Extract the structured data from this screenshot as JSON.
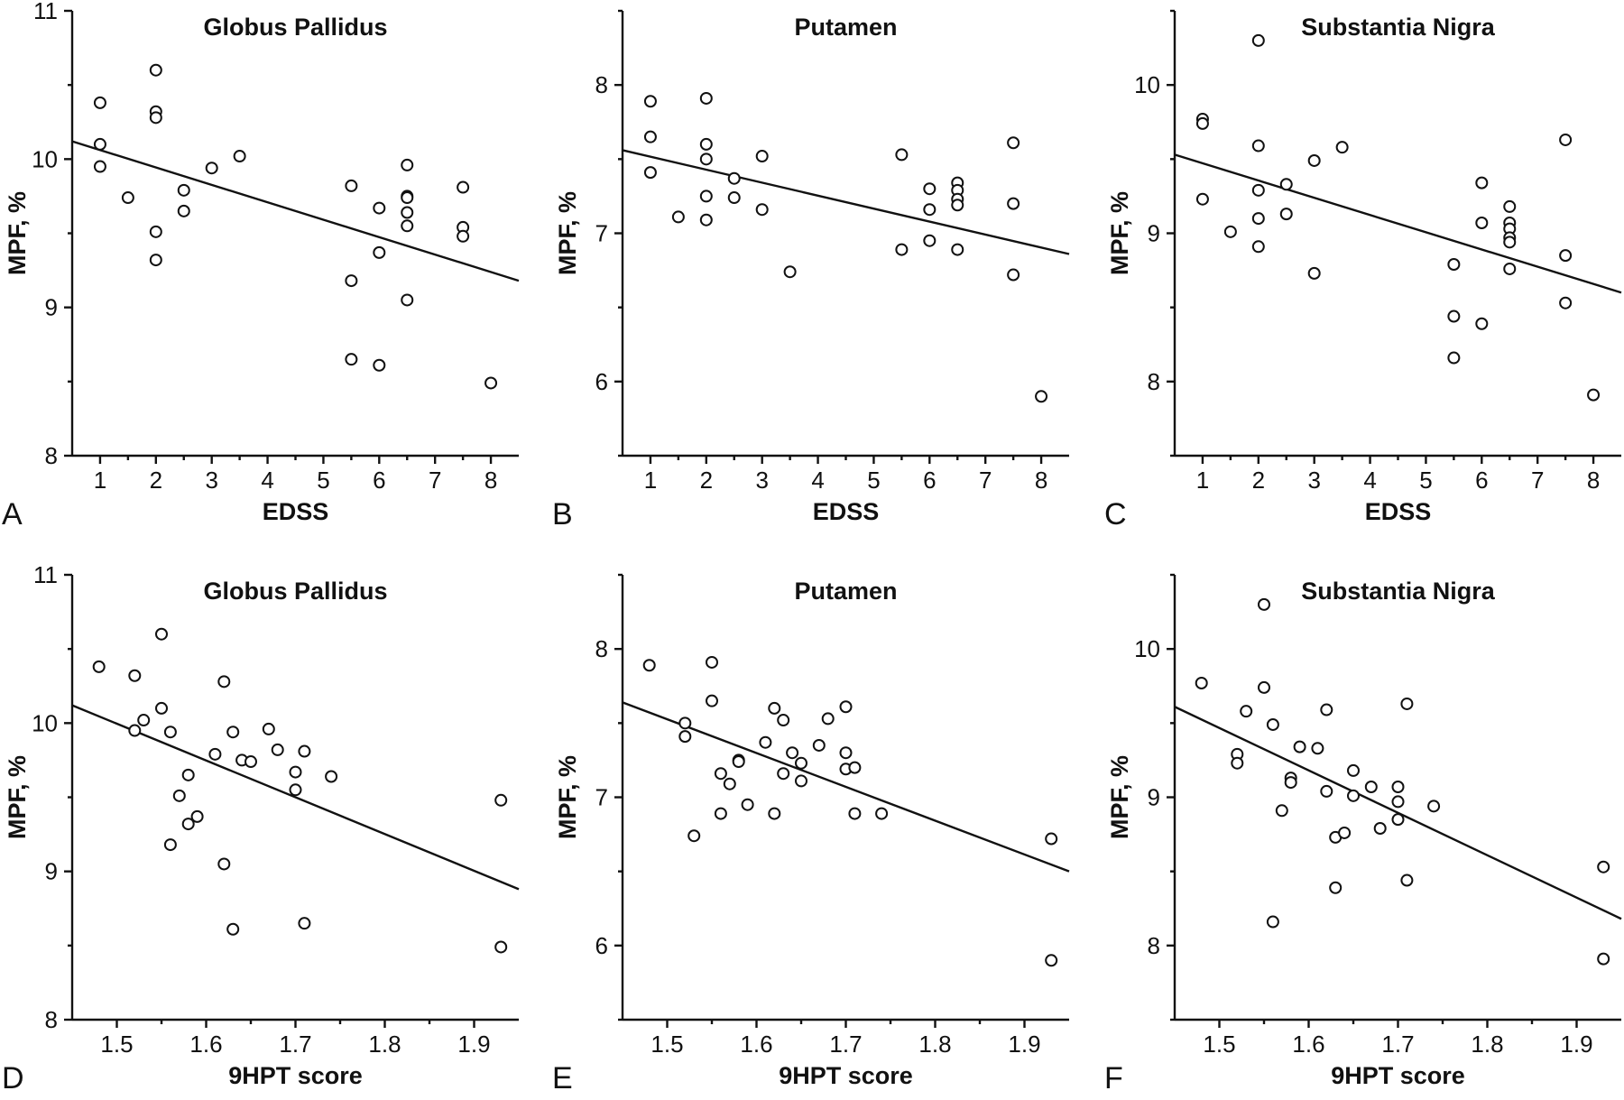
{
  "chart_data": [
    {
      "id": "A",
      "type": "scatter",
      "panel_label": "A",
      "title": "Globus Pallidus",
      "xlabel": "EDSS",
      "ylabel": "MPF, %",
      "xlim": [
        0.5,
        8.5
      ],
      "ylim": [
        8,
        11
      ],
      "xticks": [
        1,
        2,
        3,
        4,
        5,
        6,
        7,
        8
      ],
      "yticks": [
        8,
        9,
        10,
        11
      ],
      "points": [
        [
          1,
          10.38
        ],
        [
          1,
          10.1
        ],
        [
          1,
          9.95
        ],
        [
          1.5,
          9.74
        ],
        [
          2,
          10.6
        ],
        [
          2,
          10.32
        ],
        [
          2,
          10.28
        ],
        [
          2,
          9.51
        ],
        [
          2,
          9.32
        ],
        [
          2.5,
          9.79
        ],
        [
          2.5,
          9.65
        ],
        [
          3,
          9.94
        ],
        [
          3.5,
          10.02
        ],
        [
          5.5,
          9.82
        ],
        [
          5.5,
          9.18
        ],
        [
          5.5,
          8.65
        ],
        [
          6,
          9.67
        ],
        [
          6,
          9.37
        ],
        [
          6,
          8.61
        ],
        [
          6.5,
          9.96
        ],
        [
          6.5,
          9.75
        ],
        [
          6.5,
          9.74
        ],
        [
          6.5,
          9.64
        ],
        [
          6.5,
          9.55
        ],
        [
          6.5,
          9.05
        ],
        [
          7.5,
          9.81
        ],
        [
          7.5,
          9.54
        ],
        [
          7.5,
          9.48
        ],
        [
          8,
          8.49
        ]
      ],
      "fit_line": [
        [
          0.5,
          10.12
        ],
        [
          8.5,
          9.18
        ]
      ]
    },
    {
      "id": "B",
      "type": "scatter",
      "panel_label": "B",
      "title": "Putamen",
      "xlabel": "EDSS",
      "ylabel": "MPF, %",
      "xlim": [
        0.5,
        8.5
      ],
      "ylim": [
        5.5,
        8.5
      ],
      "xticks": [
        1,
        2,
        3,
        4,
        5,
        6,
        7,
        8
      ],
      "yticks": [
        6,
        7,
        8
      ],
      "points": [
        [
          1,
          7.89
        ],
        [
          1,
          7.65
        ],
        [
          1,
          7.41
        ],
        [
          1.5,
          7.11
        ],
        [
          2,
          7.91
        ],
        [
          2,
          7.6
        ],
        [
          2,
          7.5
        ],
        [
          2,
          7.25
        ],
        [
          2,
          7.09
        ],
        [
          2.5,
          7.37
        ],
        [
          2.5,
          7.24
        ],
        [
          3,
          7.52
        ],
        [
          3,
          7.16
        ],
        [
          3.5,
          6.74
        ],
        [
          5.5,
          7.53
        ],
        [
          5.5,
          6.89
        ],
        [
          6,
          7.3
        ],
        [
          6,
          7.16
        ],
        [
          6,
          6.95
        ],
        [
          6.5,
          7.34
        ],
        [
          6.5,
          7.29
        ],
        [
          6.5,
          7.23
        ],
        [
          6.5,
          7.19
        ],
        [
          6.5,
          6.89
        ],
        [
          7.5,
          7.61
        ],
        [
          7.5,
          7.2
        ],
        [
          7.5,
          6.72
        ],
        [
          8,
          5.9
        ]
      ],
      "fit_line": [
        [
          0.5,
          7.56
        ],
        [
          8.5,
          6.86
        ]
      ]
    },
    {
      "id": "C",
      "type": "scatter",
      "panel_label": "C",
      "title": "Substantia Nigra",
      "xlabel": "EDSS",
      "ylabel": "MPF, %",
      "xlim": [
        0.5,
        8.5
      ],
      "ylim": [
        7.5,
        10.5
      ],
      "xticks": [
        1,
        2,
        3,
        4,
        5,
        6,
        7,
        8
      ],
      "yticks": [
        8,
        9,
        10
      ],
      "points": [
        [
          1,
          9.77
        ],
        [
          1,
          9.74
        ],
        [
          1,
          9.23
        ],
        [
          1.5,
          9.01
        ],
        [
          2,
          10.3
        ],
        [
          2,
          9.59
        ],
        [
          2,
          9.29
        ],
        [
          2,
          9.1
        ],
        [
          2,
          8.91
        ],
        [
          2.5,
          9.33
        ],
        [
          2.5,
          9.13
        ],
        [
          3,
          9.49
        ],
        [
          3,
          8.73
        ],
        [
          3.5,
          9.58
        ],
        [
          5.5,
          8.79
        ],
        [
          5.5,
          8.44
        ],
        [
          5.5,
          8.16
        ],
        [
          6,
          9.34
        ],
        [
          6,
          9.07
        ],
        [
          6,
          8.39
        ],
        [
          6.5,
          9.18
        ],
        [
          6.5,
          9.07
        ],
        [
          6.5,
          9.03
        ],
        [
          6.5,
          8.97
        ],
        [
          6.5,
          8.94
        ],
        [
          6.5,
          8.76
        ],
        [
          7.5,
          9.63
        ],
        [
          7.5,
          8.85
        ],
        [
          7.5,
          8.53
        ],
        [
          8,
          7.91
        ]
      ],
      "fit_line": [
        [
          0.5,
          9.53
        ],
        [
          8.5,
          8.6
        ]
      ]
    },
    {
      "id": "D",
      "type": "scatter",
      "panel_label": "D",
      "title": "Globus Pallidus",
      "xlabel": "9HPT score",
      "ylabel": "MPF, %",
      "xlim": [
        1.45,
        1.95
      ],
      "ylim": [
        8,
        11
      ],
      "xticks": [
        1.5,
        1.6,
        1.7,
        1.8,
        1.9
      ],
      "yticks": [
        8,
        9,
        10,
        11
      ],
      "points": [
        [
          1.48,
          10.38
        ],
        [
          1.52,
          10.32
        ],
        [
          1.52,
          9.95
        ],
        [
          1.53,
          10.02
        ],
        [
          1.55,
          10.6
        ],
        [
          1.55,
          10.1
        ],
        [
          1.56,
          9.94
        ],
        [
          1.56,
          9.18
        ],
        [
          1.57,
          9.51
        ],
        [
          1.58,
          9.65
        ],
        [
          1.58,
          9.32
        ],
        [
          1.59,
          9.37
        ],
        [
          1.61,
          9.79
        ],
        [
          1.62,
          10.28
        ],
        [
          1.62,
          9.05
        ],
        [
          1.63,
          9.94
        ],
        [
          1.63,
          8.61
        ],
        [
          1.64,
          9.75
        ],
        [
          1.65,
          9.74
        ],
        [
          1.67,
          9.96
        ],
        [
          1.68,
          9.82
        ],
        [
          1.7,
          9.67
        ],
        [
          1.7,
          9.55
        ],
        [
          1.71,
          9.81
        ],
        [
          1.71,
          8.65
        ],
        [
          1.74,
          9.64
        ],
        [
          1.93,
          9.48
        ],
        [
          1.93,
          8.49
        ]
      ],
      "fit_line": [
        [
          1.45,
          10.12
        ],
        [
          1.95,
          8.88
        ]
      ]
    },
    {
      "id": "E",
      "type": "scatter",
      "panel_label": "E",
      "title": "Putamen",
      "xlabel": "9HPT score",
      "ylabel": "MPF, %",
      "xlim": [
        1.45,
        1.95
      ],
      "ylim": [
        5.5,
        8.5
      ],
      "xticks": [
        1.5,
        1.6,
        1.7,
        1.8,
        1.9
      ],
      "yticks": [
        6,
        7,
        8
      ],
      "points": [
        [
          1.48,
          7.89
        ],
        [
          1.52,
          7.5
        ],
        [
          1.52,
          7.41
        ],
        [
          1.53,
          6.74
        ],
        [
          1.55,
          7.91
        ],
        [
          1.55,
          7.65
        ],
        [
          1.56,
          7.16
        ],
        [
          1.56,
          6.89
        ],
        [
          1.57,
          7.09
        ],
        [
          1.58,
          7.25
        ],
        [
          1.58,
          7.24
        ],
        [
          1.59,
          6.95
        ],
        [
          1.61,
          7.37
        ],
        [
          1.62,
          7.6
        ],
        [
          1.62,
          6.89
        ],
        [
          1.63,
          7.52
        ],
        [
          1.63,
          7.16
        ],
        [
          1.64,
          7.3
        ],
        [
          1.65,
          7.23
        ],
        [
          1.65,
          7.11
        ],
        [
          1.67,
          7.35
        ],
        [
          1.68,
          7.53
        ],
        [
          1.7,
          7.61
        ],
        [
          1.7,
          7.3
        ],
        [
          1.7,
          7.19
        ],
        [
          1.71,
          7.2
        ],
        [
          1.71,
          6.89
        ],
        [
          1.74,
          6.89
        ],
        [
          1.93,
          6.72
        ],
        [
          1.93,
          5.9
        ]
      ],
      "fit_line": [
        [
          1.45,
          7.64
        ],
        [
          1.95,
          6.5
        ]
      ]
    },
    {
      "id": "F",
      "type": "scatter",
      "panel_label": "F",
      "title": "Substantia Nigra",
      "xlabel": "9HPT score",
      "ylabel": "MPF, %",
      "xlim": [
        1.45,
        1.95
      ],
      "ylim": [
        7.5,
        10.5
      ],
      "xticks": [
        1.5,
        1.6,
        1.7,
        1.8,
        1.9
      ],
      "yticks": [
        8,
        9,
        10
      ],
      "points": [
        [
          1.48,
          9.77
        ],
        [
          1.52,
          9.29
        ],
        [
          1.52,
          9.23
        ],
        [
          1.53,
          9.58
        ],
        [
          1.55,
          10.3
        ],
        [
          1.55,
          9.74
        ],
        [
          1.56,
          9.49
        ],
        [
          1.56,
          8.16
        ],
        [
          1.57,
          8.91
        ],
        [
          1.58,
          9.13
        ],
        [
          1.58,
          9.1
        ],
        [
          1.59,
          9.34
        ],
        [
          1.61,
          9.33
        ],
        [
          1.62,
          9.59
        ],
        [
          1.62,
          9.04
        ],
        [
          1.63,
          8.73
        ],
        [
          1.63,
          8.39
        ],
        [
          1.64,
          8.76
        ],
        [
          1.65,
          9.18
        ],
        [
          1.65,
          9.01
        ],
        [
          1.67,
          9.07
        ],
        [
          1.68,
          8.79
        ],
        [
          1.7,
          9.07
        ],
        [
          1.7,
          8.97
        ],
        [
          1.7,
          8.85
        ],
        [
          1.71,
          9.63
        ],
        [
          1.71,
          8.44
        ],
        [
          1.74,
          8.94
        ],
        [
          1.93,
          8.53
        ],
        [
          1.93,
          7.91
        ]
      ],
      "fit_line": [
        [
          1.45,
          9.61
        ],
        [
          1.95,
          8.18
        ]
      ]
    }
  ]
}
